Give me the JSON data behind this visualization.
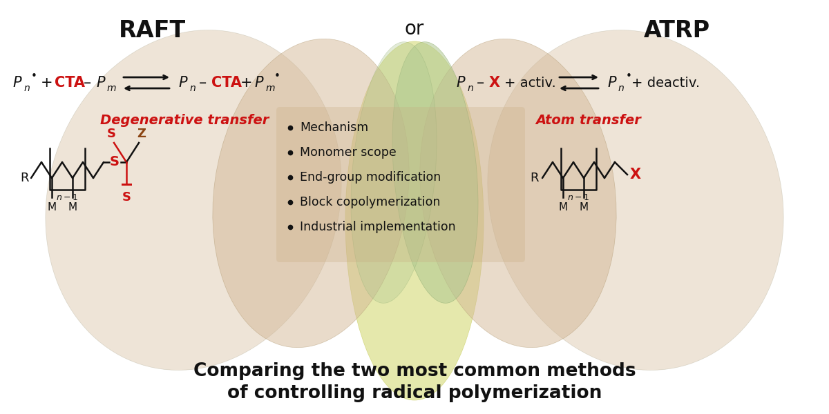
{
  "title_raft": "RAFT",
  "title_atrp": "ATRP",
  "title_or": "or",
  "raft_label": "Degenerative transfer",
  "atrp_label": "Atom transfer",
  "bullet_items": [
    "Mechanism",
    "Monomer scope",
    "End-group modification",
    "Block copolymerization",
    "Industrial implementation"
  ],
  "bottom_text1": "Comparing the two most common methods",
  "bottom_text2": "of controlling radical polymerization",
  "bg_color": "#ffffff",
  "red_color": "#cc1111",
  "black_color": "#111111",
  "tan_color": "#d4b896",
  "yellow_green_color": "#d8dd80",
  "green_gray_color": "#b0c890",
  "bullet_box_color": "#c8aa80",
  "z_color": "#8B4513"
}
